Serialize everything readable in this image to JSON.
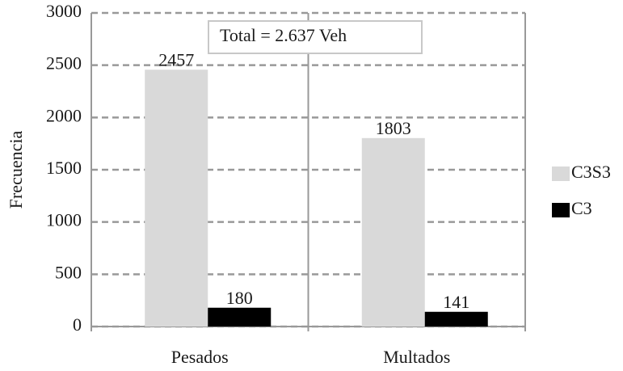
{
  "chart_data": {
    "type": "bar",
    "y_label": "Frecuencia",
    "annotation": "Total = 2.637 Veh",
    "categories": [
      "Pesados",
      "Multados"
    ],
    "series": [
      {
        "name": "C3S3",
        "color": "#d9d9d9",
        "values": [
          2457,
          1803
        ]
      },
      {
        "name": "C3",
        "color": "#000000",
        "values": [
          180,
          141
        ]
      }
    ],
    "ylim": [
      0,
      3000
    ],
    "yticks": [
      0,
      500,
      1000,
      1500,
      2000,
      2500,
      3000
    ],
    "grid": true,
    "legend": "right"
  }
}
